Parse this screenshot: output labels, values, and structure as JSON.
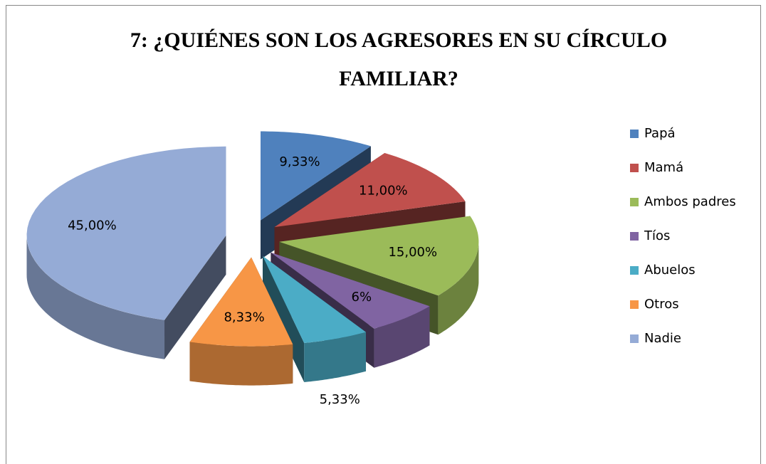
{
  "chart_data": {
    "type": "pie",
    "title": "7: ¿QUIÉNES SON LOS AGRESORES EN SU CÍRCULO FAMILIAR?",
    "categories": [
      "Papá",
      "Mamá",
      "Ambos padres",
      "Tíos",
      "Abuelos",
      "Otros",
      "Nadie"
    ],
    "values": [
      9.33,
      11,
      15,
      6,
      5.33,
      8.33,
      45
    ],
    "value_labels": [
      "9,33%",
      "11,00%",
      "15,00%",
      "6%",
      "5,33%",
      "8,33%",
      "45,00%"
    ],
    "colors": [
      "#4f81bd",
      "#c0504d",
      "#9bbb59",
      "#8064a2",
      "#4bacc6",
      "#f79646",
      "#95abd6"
    ],
    "legend": "right"
  }
}
